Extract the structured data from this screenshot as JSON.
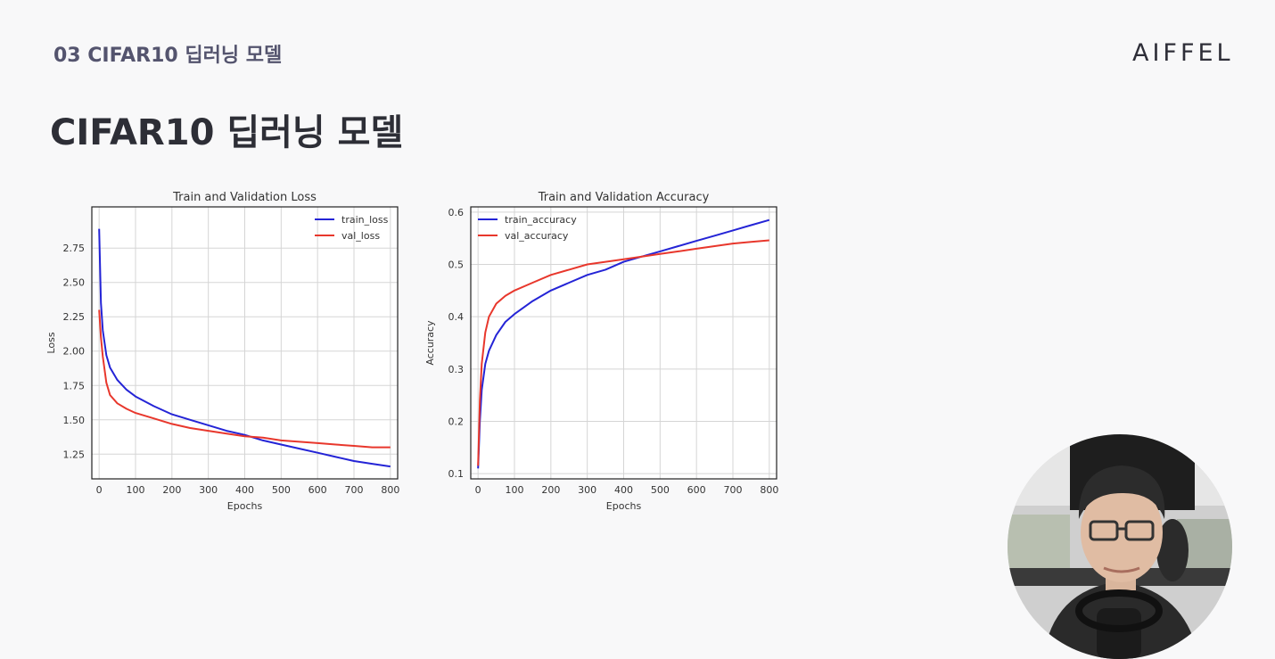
{
  "header": {
    "section_label": "03 CIFAR10 딥러닝 모델",
    "logo": "AIFFEL"
  },
  "page_title": "CIFAR10 딥러닝 모델",
  "colors": {
    "train": "#2424d6",
    "val": "#e8372c",
    "text": "#2d2e36",
    "section": "#54546e"
  },
  "chart_data": [
    {
      "type": "line",
      "title": "Train and Validation Loss",
      "xlabel": "Epochs",
      "ylabel": "Loss",
      "xlim": [
        -20,
        820
      ],
      "ylim": [
        1.07,
        3.05
      ],
      "xticks": [
        "0",
        "100",
        "200",
        "300",
        "400",
        "500",
        "600",
        "700",
        "800"
      ],
      "yticks": [
        "1.25",
        "1.50",
        "1.75",
        "2.00",
        "2.25",
        "2.50",
        "2.75"
      ],
      "grid": true,
      "legend": "top-right",
      "series": [
        {
          "name": "train_loss",
          "color": "#2424d6",
          "x": [
            0,
            5,
            10,
            20,
            30,
            50,
            75,
            100,
            150,
            200,
            250,
            300,
            350,
            400,
            450,
            500,
            550,
            600,
            650,
            700,
            750,
            800
          ],
          "y": [
            2.89,
            2.35,
            2.15,
            1.97,
            1.88,
            1.79,
            1.72,
            1.67,
            1.6,
            1.54,
            1.5,
            1.46,
            1.42,
            1.39,
            1.35,
            1.32,
            1.29,
            1.26,
            1.23,
            1.2,
            1.18,
            1.16
          ]
        },
        {
          "name": "val_loss",
          "color": "#e8372c",
          "x": [
            0,
            5,
            10,
            20,
            30,
            50,
            75,
            100,
            150,
            200,
            250,
            300,
            350,
            400,
            450,
            500,
            550,
            600,
            650,
            700,
            750,
            800
          ],
          "y": [
            2.3,
            2.1,
            1.96,
            1.77,
            1.68,
            1.62,
            1.58,
            1.55,
            1.51,
            1.47,
            1.44,
            1.42,
            1.4,
            1.38,
            1.37,
            1.35,
            1.34,
            1.33,
            1.32,
            1.31,
            1.3,
            1.3
          ]
        }
      ]
    },
    {
      "type": "line",
      "title": "Train and Validation Accuracy",
      "xlabel": "Epochs",
      "ylabel": "Accuracy",
      "xlim": [
        -20,
        820
      ],
      "ylim": [
        0.09,
        0.61
      ],
      "xticks": [
        "0",
        "100",
        "200",
        "300",
        "400",
        "500",
        "600",
        "700",
        "800"
      ],
      "yticks": [
        "0.1",
        "0.2",
        "0.3",
        "0.4",
        "0.5",
        "0.6"
      ],
      "grid": true,
      "legend": "top-left",
      "series": [
        {
          "name": "train_accuracy",
          "color": "#2424d6",
          "x": [
            0,
            5,
            10,
            20,
            30,
            50,
            75,
            100,
            150,
            200,
            250,
            300,
            350,
            400,
            450,
            500,
            550,
            600,
            650,
            700,
            750,
            800
          ],
          "y": [
            0.11,
            0.2,
            0.26,
            0.31,
            0.335,
            0.365,
            0.39,
            0.405,
            0.43,
            0.45,
            0.465,
            0.48,
            0.49,
            0.505,
            0.515,
            0.525,
            0.535,
            0.545,
            0.555,
            0.565,
            0.575,
            0.585
          ]
        },
        {
          "name": "val_accuracy",
          "color": "#e8372c",
          "x": [
            0,
            5,
            10,
            20,
            30,
            50,
            75,
            100,
            150,
            200,
            250,
            300,
            350,
            400,
            450,
            500,
            550,
            600,
            650,
            700,
            750,
            800
          ],
          "y": [
            0.115,
            0.24,
            0.31,
            0.37,
            0.4,
            0.425,
            0.44,
            0.45,
            0.465,
            0.48,
            0.49,
            0.5,
            0.505,
            0.51,
            0.515,
            0.52,
            0.525,
            0.53,
            0.535,
            0.54,
            0.543,
            0.546
          ]
        }
      ]
    }
  ]
}
